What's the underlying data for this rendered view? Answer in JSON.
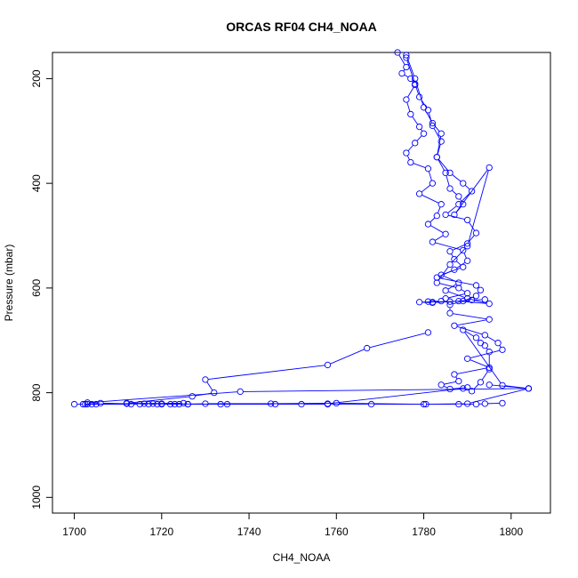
{
  "chart_data": {
    "type": "line",
    "title": "ORCAS RF04 CH4_NOAA",
    "xlabel": "CH4_NOAA",
    "ylabel": "Pressure (mbar)",
    "xlim": [
      1695,
      1809
    ],
    "ylim": [
      1030,
      150
    ],
    "y_inverted": true,
    "xticks": [
      1700,
      1720,
      1740,
      1760,
      1780,
      1800
    ],
    "yticks": [
      200,
      400,
      600,
      800,
      1000
    ],
    "grid": false,
    "legend": "none",
    "marker": "open-circle",
    "color": "#0000ff",
    "series": [
      {
        "x": [
          1774,
          1776,
          1775,
          1777,
          1778,
          1776,
          1777,
          1779,
          1780,
          1778,
          1776,
          1777,
          1781,
          1782,
          1779,
          1784,
          1783,
          1781,
          1785,
          1782,
          1789,
          1790,
          1787,
          1783,
          1792,
          1793,
          1792,
          1789,
          1786,
          1786,
          1795,
          1787,
          1794,
          1797,
          1798,
          1790,
          1795,
          1787,
          1788,
          1784,
          1786,
          1790,
          1791,
          1793,
          1795,
          1795,
          1794,
          1793,
          1792,
          1789,
          1798,
          1804,
          1795
        ],
        "y": [
          150,
          178,
          190,
          200,
          212,
          240,
          268,
          292,
          305,
          323,
          342,
          360,
          372,
          400,
          420,
          440,
          462,
          478,
          497,
          512,
          528,
          548,
          565,
          580,
          595,
          604,
          615,
          625,
          632,
          648,
          660,
          672,
          690,
          705,
          718,
          735,
          752,
          765,
          778,
          785,
          793,
          790,
          797,
          780,
          755,
          722,
          710,
          705,
          695,
          680,
          786,
          792,
          785
        ]
      },
      {
        "x": [
          1776,
          1778,
          1780,
          1782,
          1784,
          1783,
          1786,
          1789,
          1791,
          1788,
          1785,
          1790,
          1792,
          1790,
          1786,
          1787,
          1789,
          1784,
          1788,
          1785,
          1790,
          1795,
          1788,
          1782,
          1779,
          1786,
          1791,
          1794
        ],
        "y": [
          155,
          200,
          255,
          285,
          305,
          350,
          380,
          400,
          415,
          440,
          460,
          470,
          495,
          515,
          530,
          545,
          560,
          575,
          590,
          605,
          620,
          630,
          625,
          628,
          627,
          626,
          623,
          622
        ]
      },
      {
        "x": [
          1776,
          1778,
          1779,
          1781,
          1782,
          1784,
          1783,
          1785,
          1786,
          1788,
          1789,
          1787,
          1795,
          1790,
          1786,
          1783,
          1788,
          1790,
          1785,
          1784,
          1781,
          1782
        ],
        "y": [
          160,
          210,
          235,
          260,
          290,
          320,
          350,
          380,
          410,
          425,
          440,
          460,
          370,
          520,
          555,
          590,
          600,
          610,
          620,
          625,
          626,
          627
        ]
      },
      {
        "x": [
          1781,
          1767,
          1758,
          1730,
          1732,
          1727,
          1712,
          1720,
          1725,
          1702,
          1716,
          1735,
          1745,
          1760,
          1780,
          1790,
          1804
        ],
        "y": [
          685,
          715,
          747,
          775,
          800,
          807,
          820,
          821,
          820,
          822,
          821,
          822,
          821,
          820,
          822,
          821,
          792
        ]
      },
      {
        "x": [
          1804,
          1738,
          1703,
          1706,
          1712,
          1718,
          1722,
          1726,
          1730,
          1758,
          1789
        ],
        "y": [
          792,
          798,
          819,
          820,
          821,
          821,
          822,
          822,
          821,
          821,
          792
        ]
      },
      {
        "x": [
          1700,
          1702.5,
          1703,
          1704,
          1705,
          1713,
          1715,
          1717,
          1719,
          1720,
          1723,
          1724,
          1726,
          1733.5,
          1746,
          1752,
          1758,
          1768,
          1780.5,
          1788,
          1792,
          1794,
          1798
        ],
        "y": [
          822,
          822,
          822,
          822,
          822,
          822,
          822,
          822,
          822,
          822,
          822,
          822,
          822,
          822,
          822,
          822,
          822,
          822,
          822,
          822,
          822,
          821,
          820
        ]
      }
    ]
  }
}
